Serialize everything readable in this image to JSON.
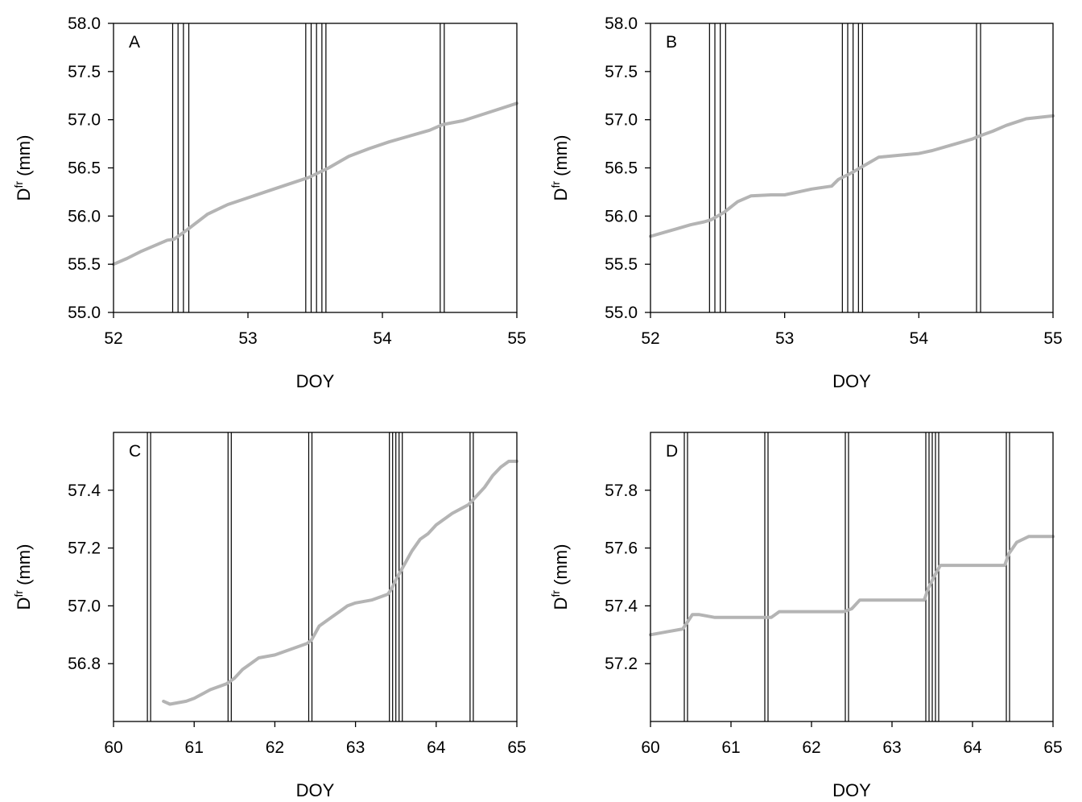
{
  "chart_data": [
    {
      "panel": "A",
      "type": "line",
      "xlabel": "DOY",
      "ylabel_main": "D",
      "ylabel_sup": "fr",
      "ylabel_unit": "(mm)",
      "xlim": [
        52,
        55
      ],
      "ylim": [
        55.0,
        58.0
      ],
      "xticks": [
        52,
        53,
        54,
        55
      ],
      "yticks": [
        55.0,
        55.5,
        56.0,
        56.5,
        57.0,
        57.5,
        58.0
      ],
      "vlines": [
        52.44,
        52.48,
        52.52,
        52.56,
        53.43,
        53.47,
        53.51,
        53.55,
        53.58,
        54.43,
        54.46
      ],
      "series": [
        {
          "x": [
            52.0,
            52.1,
            52.2,
            52.3,
            52.4,
            52.45,
            52.55,
            52.7,
            52.85,
            53.0,
            53.15,
            53.3,
            53.45,
            53.6,
            53.75,
            53.9,
            54.05,
            54.2,
            54.35,
            54.45,
            54.6,
            54.8,
            55.0
          ],
          "y": [
            55.5,
            55.56,
            55.63,
            55.69,
            55.75,
            55.76,
            55.86,
            56.02,
            56.12,
            56.19,
            56.26,
            56.33,
            56.4,
            56.5,
            56.62,
            56.7,
            56.77,
            56.83,
            56.89,
            56.95,
            56.99,
            57.08,
            57.17
          ]
        }
      ]
    },
    {
      "panel": "B",
      "type": "line",
      "xlabel": "DOY",
      "ylabel_main": "D",
      "ylabel_sup": "fr",
      "ylabel_unit": "(mm)",
      "xlim": [
        52,
        55
      ],
      "ylim": [
        55.0,
        58.0
      ],
      "xticks": [
        52,
        53,
        54,
        55
      ],
      "yticks": [
        55.0,
        55.5,
        56.0,
        56.5,
        57.0,
        57.5,
        58.0
      ],
      "vlines": [
        52.44,
        52.48,
        52.52,
        52.56,
        53.43,
        53.47,
        53.51,
        53.55,
        53.58,
        54.43,
        54.46
      ],
      "series": [
        {
          "x": [
            52.0,
            52.1,
            52.2,
            52.3,
            52.4,
            52.45,
            52.55,
            52.65,
            52.75,
            52.9,
            53.0,
            53.1,
            53.2,
            53.35,
            53.4,
            53.5,
            53.6,
            53.7,
            53.85,
            54.0,
            54.1,
            54.2,
            54.3,
            54.4,
            54.45,
            54.55,
            54.65,
            54.8,
            55.0
          ],
          "y": [
            55.79,
            55.83,
            55.87,
            55.91,
            55.94,
            55.96,
            56.04,
            56.15,
            56.21,
            56.22,
            56.22,
            56.25,
            56.28,
            56.31,
            56.38,
            56.45,
            56.53,
            56.61,
            56.63,
            56.65,
            56.68,
            56.72,
            56.76,
            56.8,
            56.83,
            56.88,
            56.94,
            57.01,
            57.04
          ]
        }
      ]
    },
    {
      "panel": "C",
      "type": "line",
      "xlabel": "DOY",
      "ylabel_main": "D",
      "ylabel_sup": "fr",
      "ylabel_unit": "(mm)",
      "xlim": [
        60,
        65
      ],
      "ylim": [
        56.6,
        57.6
      ],
      "xticks": [
        60,
        61,
        62,
        63,
        64,
        65
      ],
      "yticks": [
        56.8,
        57.0,
        57.2,
        57.4
      ],
      "vlines": [
        60.42,
        60.46,
        61.42,
        61.46,
        62.42,
        62.46,
        63.42,
        63.46,
        63.5,
        63.54,
        63.58,
        64.42,
        64.46
      ],
      "series": [
        {
          "x": [
            60.62,
            60.7,
            60.9,
            61.0,
            61.2,
            61.4,
            61.5,
            61.6,
            61.7,
            61.8,
            62.0,
            62.2,
            62.4,
            62.45,
            62.55,
            62.7,
            62.8,
            62.9,
            63.0,
            63.2,
            63.4,
            63.45,
            63.5,
            63.6,
            63.7,
            63.8,
            63.9,
            64.0,
            64.2,
            64.4,
            64.5,
            64.6,
            64.7,
            64.8,
            64.9,
            65.0
          ],
          "y": [
            56.67,
            56.66,
            56.67,
            56.68,
            56.71,
            56.73,
            56.75,
            56.78,
            56.8,
            56.82,
            56.83,
            56.85,
            56.87,
            56.88,
            56.93,
            56.96,
            56.98,
            57.0,
            57.01,
            57.02,
            57.04,
            57.06,
            57.09,
            57.14,
            57.19,
            57.23,
            57.25,
            57.28,
            57.32,
            57.35,
            57.38,
            57.41,
            57.45,
            57.48,
            57.5,
            57.5
          ]
        }
      ]
    },
    {
      "panel": "D",
      "type": "line",
      "xlabel": "DOY",
      "ylabel_main": "D",
      "ylabel_sup": "fr",
      "ylabel_unit": "(mm)",
      "xlim": [
        60,
        65
      ],
      "ylim": [
        57.0,
        58.0
      ],
      "xticks": [
        60,
        61,
        62,
        63,
        64,
        65
      ],
      "yticks": [
        57.2,
        57.4,
        57.6,
        57.8
      ],
      "vlines": [
        60.42,
        60.46,
        61.42,
        61.46,
        62.42,
        62.46,
        63.42,
        63.46,
        63.5,
        63.54,
        63.58,
        64.42,
        64.46
      ],
      "series": [
        {
          "x": [
            60.0,
            60.2,
            60.4,
            60.45,
            60.52,
            60.6,
            60.8,
            61.0,
            61.2,
            61.4,
            61.5,
            61.6,
            61.8,
            62.0,
            62.2,
            62.4,
            62.5,
            62.6,
            62.8,
            63.0,
            63.2,
            63.4,
            63.45,
            63.52,
            63.6,
            63.8,
            64.0,
            64.2,
            64.4,
            64.45,
            64.55,
            64.7,
            65.0
          ],
          "y": [
            57.3,
            57.31,
            57.32,
            57.34,
            57.37,
            57.37,
            57.36,
            57.36,
            57.36,
            57.36,
            57.36,
            57.38,
            57.38,
            57.38,
            57.38,
            57.38,
            57.39,
            57.42,
            57.42,
            57.42,
            57.42,
            57.42,
            57.46,
            57.5,
            57.54,
            57.54,
            57.54,
            57.54,
            57.54,
            57.58,
            57.62,
            57.64,
            57.64
          ]
        }
      ]
    }
  ]
}
